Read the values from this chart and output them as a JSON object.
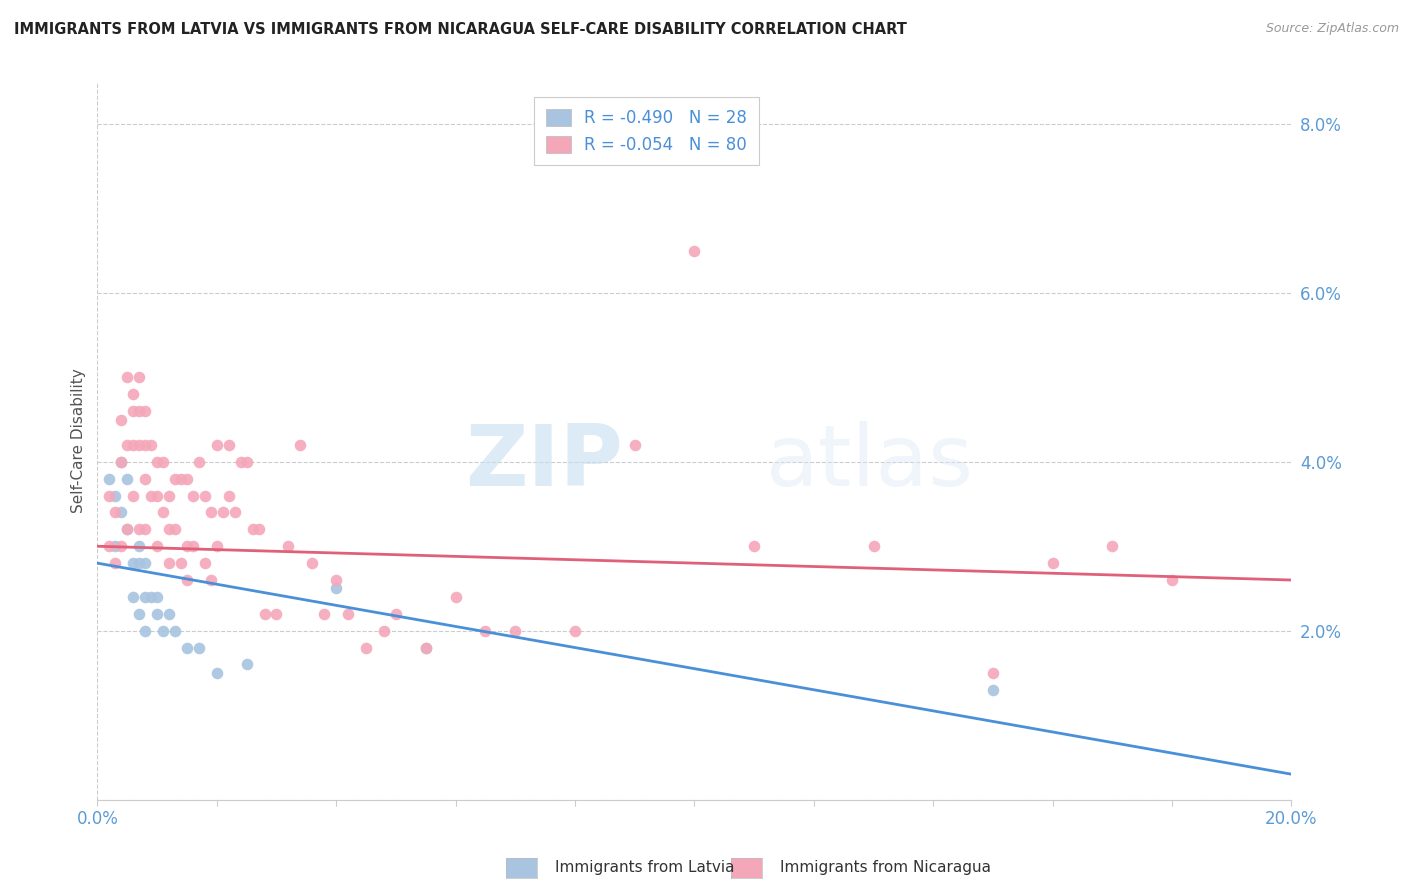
{
  "title": "IMMIGRANTS FROM LATVIA VS IMMIGRANTS FROM NICARAGUA SELF-CARE DISABILITY CORRELATION CHART",
  "source": "Source: ZipAtlas.com",
  "ylabel": "Self-Care Disability",
  "xlim": [
    0.0,
    0.2
  ],
  "ylim": [
    0.0,
    0.085
  ],
  "xticks": [
    0.0,
    0.02,
    0.04,
    0.06,
    0.08,
    0.1,
    0.12,
    0.14,
    0.16,
    0.18,
    0.2
  ],
  "yticks": [
    0.0,
    0.02,
    0.04,
    0.06,
    0.08
  ],
  "latvia_color": "#a8c4e0",
  "nicaragua_color": "#f4a7b9",
  "latvia_line_color": "#4a90d9",
  "nicaragua_line_color": "#e0607a",
  "latvia_R": -0.49,
  "latvia_N": 28,
  "nicaragua_R": -0.054,
  "nicaragua_N": 80,
  "watermark_zip": "ZIP",
  "watermark_atlas": "atlas",
  "bg_color": "#ffffff",
  "grid_color": "#cccccc",
  "tick_label_color": "#5b9bd5",
  "title_color": "#222222",
  "source_color": "#999999",
  "legend_text_color": "#4a90d9",
  "ylabel_color": "#555555",
  "latvia_scatter_x": [
    0.002,
    0.003,
    0.003,
    0.004,
    0.004,
    0.005,
    0.005,
    0.006,
    0.006,
    0.007,
    0.007,
    0.007,
    0.008,
    0.008,
    0.008,
    0.009,
    0.01,
    0.01,
    0.011,
    0.012,
    0.013,
    0.015,
    0.017,
    0.02,
    0.025,
    0.04,
    0.055,
    0.15
  ],
  "latvia_scatter_y": [
    0.038,
    0.036,
    0.03,
    0.04,
    0.034,
    0.038,
    0.032,
    0.028,
    0.024,
    0.03,
    0.028,
    0.022,
    0.028,
    0.024,
    0.02,
    0.024,
    0.024,
    0.022,
    0.02,
    0.022,
    0.02,
    0.018,
    0.018,
    0.015,
    0.016,
    0.025,
    0.018,
    0.013
  ],
  "nicaragua_scatter_x": [
    0.002,
    0.002,
    0.003,
    0.003,
    0.004,
    0.004,
    0.004,
    0.005,
    0.005,
    0.005,
    0.006,
    0.006,
    0.006,
    0.006,
    0.007,
    0.007,
    0.007,
    0.007,
    0.008,
    0.008,
    0.008,
    0.008,
    0.009,
    0.009,
    0.01,
    0.01,
    0.01,
    0.011,
    0.011,
    0.012,
    0.012,
    0.012,
    0.013,
    0.013,
    0.014,
    0.014,
    0.015,
    0.015,
    0.015,
    0.016,
    0.016,
    0.017,
    0.018,
    0.018,
    0.019,
    0.019,
    0.02,
    0.02,
    0.021,
    0.022,
    0.022,
    0.023,
    0.024,
    0.025,
    0.026,
    0.027,
    0.028,
    0.03,
    0.032,
    0.034,
    0.036,
    0.038,
    0.04,
    0.042,
    0.045,
    0.048,
    0.05,
    0.055,
    0.06,
    0.065,
    0.07,
    0.08,
    0.09,
    0.1,
    0.11,
    0.13,
    0.15,
    0.16,
    0.17,
    0.18
  ],
  "nicaragua_scatter_y": [
    0.03,
    0.036,
    0.034,
    0.028,
    0.045,
    0.04,
    0.03,
    0.05,
    0.042,
    0.032,
    0.048,
    0.046,
    0.042,
    0.036,
    0.05,
    0.046,
    0.042,
    0.032,
    0.046,
    0.042,
    0.038,
    0.032,
    0.042,
    0.036,
    0.04,
    0.036,
    0.03,
    0.04,
    0.034,
    0.036,
    0.032,
    0.028,
    0.038,
    0.032,
    0.038,
    0.028,
    0.038,
    0.03,
    0.026,
    0.036,
    0.03,
    0.04,
    0.036,
    0.028,
    0.034,
    0.026,
    0.042,
    0.03,
    0.034,
    0.042,
    0.036,
    0.034,
    0.04,
    0.04,
    0.032,
    0.032,
    0.022,
    0.022,
    0.03,
    0.042,
    0.028,
    0.022,
    0.026,
    0.022,
    0.018,
    0.02,
    0.022,
    0.018,
    0.024,
    0.02,
    0.02,
    0.02,
    0.042,
    0.065,
    0.03,
    0.03,
    0.015,
    0.028,
    0.03,
    0.026
  ],
  "lv_line_x0": 0.0,
  "lv_line_y0": 0.028,
  "lv_line_x1": 0.2,
  "lv_line_y1": 0.003,
  "ni_line_x0": 0.0,
  "ni_line_y0": 0.03,
  "ni_line_x1": 0.2,
  "ni_line_y1": 0.026
}
